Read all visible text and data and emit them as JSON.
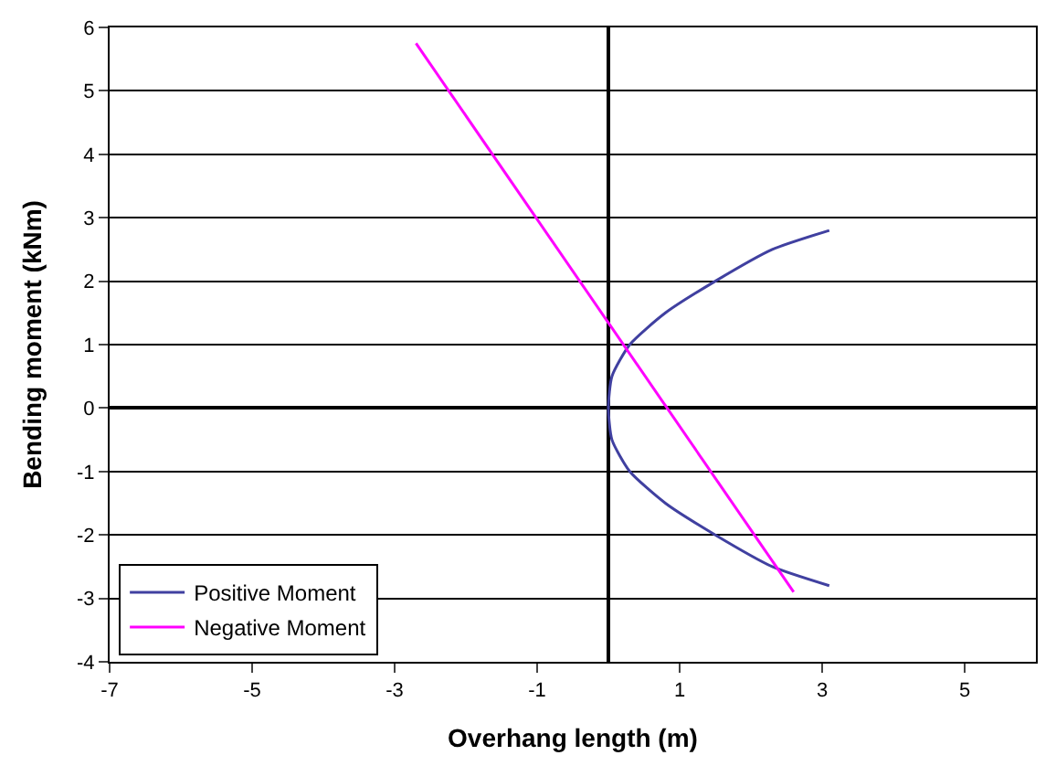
{
  "chart_data": {
    "type": "line",
    "xlabel": "Overhang length (m)",
    "ylabel": "Bending moment (kNm)",
    "xlim": [
      -7,
      6
    ],
    "xticks": [
      -7,
      -5,
      -3,
      -1,
      1,
      3,
      5
    ],
    "ylim": [
      -4,
      6
    ],
    "yticks": [
      -4,
      -3,
      -2,
      -1,
      0,
      1,
      2,
      3,
      4,
      5,
      6
    ],
    "grid": "y",
    "legend": "bottom left",
    "marker": "none",
    "line_style": "solid",
    "series": [
      {
        "name": "Positive Moment",
        "color": "#4040a0",
        "x": [
          3.1,
          2.3,
          1.5,
          0.8,
          0.3,
          0.05,
          0,
          0.05,
          0.3,
          0.8,
          1.5,
          2.3,
          3.1
        ],
        "values": [
          -2.8,
          -2.5,
          -2.0,
          -1.5,
          -1.0,
          -0.5,
          0,
          0.5,
          1.0,
          1.5,
          2.0,
          2.5,
          2.8
        ]
      },
      {
        "name": "Negative Moment",
        "color": "#ff00ff",
        "x": [
          -2.7,
          2.6
        ],
        "values": [
          5.75,
          -2.9
        ]
      }
    ]
  }
}
